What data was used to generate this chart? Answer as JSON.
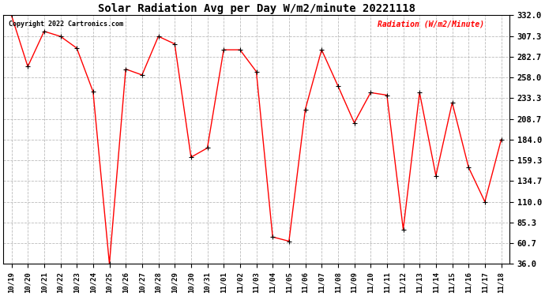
{
  "title": "Solar Radiation Avg per Day W/m2/minute 20221118",
  "copyright": "Copyright 2022 Cartronics.com",
  "ylabel": "Radiation (W/m2/Minute)",
  "dates": [
    "10/19",
    "10/20",
    "10/21",
    "10/22",
    "10/23",
    "10/24",
    "10/25",
    "10/26",
    "10/27",
    "10/28",
    "10/29",
    "10/30",
    "10/31",
    "11/01",
    "11/02",
    "11/03",
    "11/04",
    "11/05",
    "11/06",
    "11/07",
    "11/08",
    "11/09",
    "11/10",
    "11/11",
    "11/12",
    "11/13",
    "11/14",
    "11/15",
    "11/16",
    "11/17",
    "11/18"
  ],
  "values": [
    332.0,
    271.0,
    313.0,
    307.0,
    293.0,
    241.0,
    36.0,
    268.0,
    261.0,
    307.0,
    298.0,
    163.0,
    174.0,
    291.0,
    291.0,
    265.0,
    68.0,
    63.0,
    220.0,
    291.0,
    248.0,
    204.0,
    240.0,
    237.0,
    77.0,
    240.0,
    141.0,
    228.0,
    151.0,
    110.0,
    184.0
  ],
  "ylim": [
    36.0,
    332.0
  ],
  "yticks": [
    36.0,
    60.7,
    85.3,
    110.0,
    134.7,
    159.3,
    184.0,
    208.7,
    233.3,
    258.0,
    282.7,
    307.3,
    332.0
  ],
  "line_color": "red",
  "marker_color": "black",
  "bg_color": "white",
  "grid_color": "#bbbbbb",
  "title_fontsize": 10,
  "tick_fontsize": 6.5,
  "ytick_fontsize": 7.5,
  "copyright_color": "black",
  "ylabel_color": "red",
  "copyright_fontsize": 6,
  "ylabel_fontsize": 7
}
